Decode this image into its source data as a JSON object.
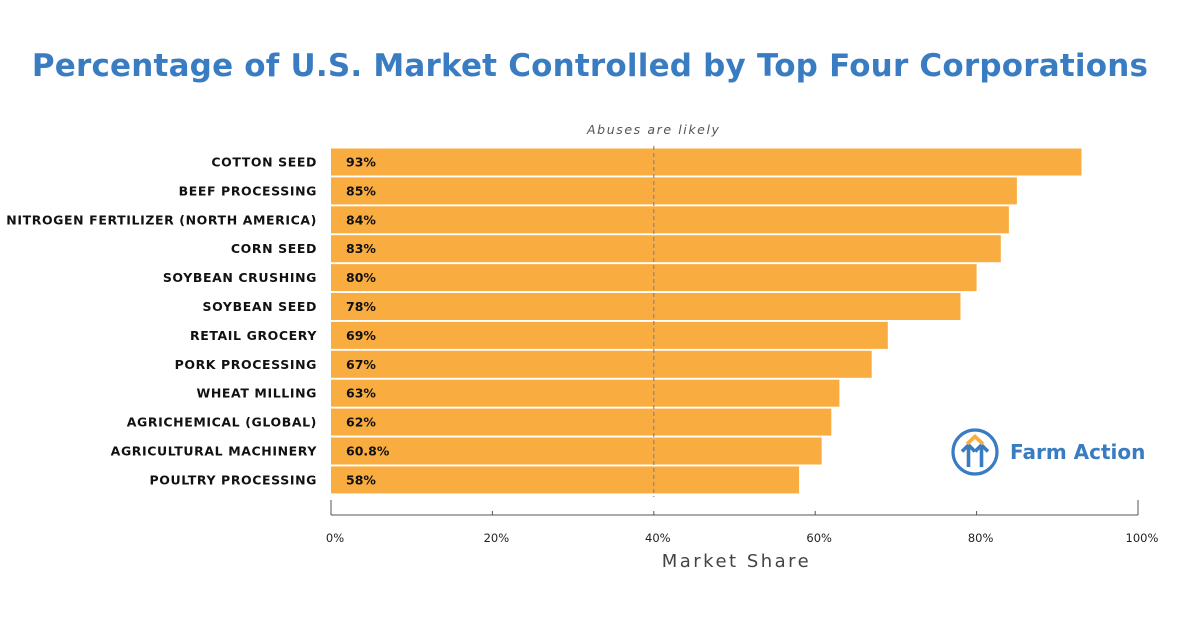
{
  "title": "Percentage of U.S. Market Controlled by Top Four Corporations",
  "colors": {
    "bar": "#f9ad41",
    "title": "#3a7cc2",
    "dashed_line": "#888888",
    "logo_blue": "#3a7cc2",
    "logo_orange": "#f9ad41"
  },
  "logo": {
    "text": "Farm Action",
    "icon": "farm-action-arrow-icon"
  },
  "chart_data": {
    "type": "bar",
    "orientation": "horizontal",
    "title": "Percentage of U.S. Market Controlled by Top Four Corporations",
    "xlabel": "Market Share",
    "ylabel": "",
    "xlim": [
      0,
      100
    ],
    "x_ticks": [
      0,
      20,
      40,
      60,
      80,
      100
    ],
    "x_tick_labels": [
      "0%",
      "20%",
      "40%",
      "60%",
      "80%",
      "100%"
    ],
    "grid": false,
    "categories": [
      "COTTON SEED",
      "BEEF PROCESSING",
      "NITROGEN FERTILIZER (NORTH AMERICA)",
      "CORN SEED",
      "SOYBEAN CRUSHING",
      "SOYBEAN SEED",
      "RETAIL GROCERY",
      "PORK PROCESSING",
      "WHEAT MILLING",
      "AGRICHEMICAL (GLOBAL)",
      "AGRICULTURAL MACHINERY",
      "POULTRY PROCESSING"
    ],
    "values": [
      93,
      85,
      84,
      83,
      80,
      78,
      69,
      67,
      63,
      62,
      60.8,
      58
    ],
    "value_labels": [
      "93%",
      "85%",
      "84%",
      "83%",
      "80%",
      "78%",
      "69%",
      "67%",
      "63%",
      "62%",
      "60.8%",
      "58%"
    ],
    "reference_line": {
      "x": 40,
      "style": "dashed",
      "label": "Abuses are likely"
    }
  }
}
